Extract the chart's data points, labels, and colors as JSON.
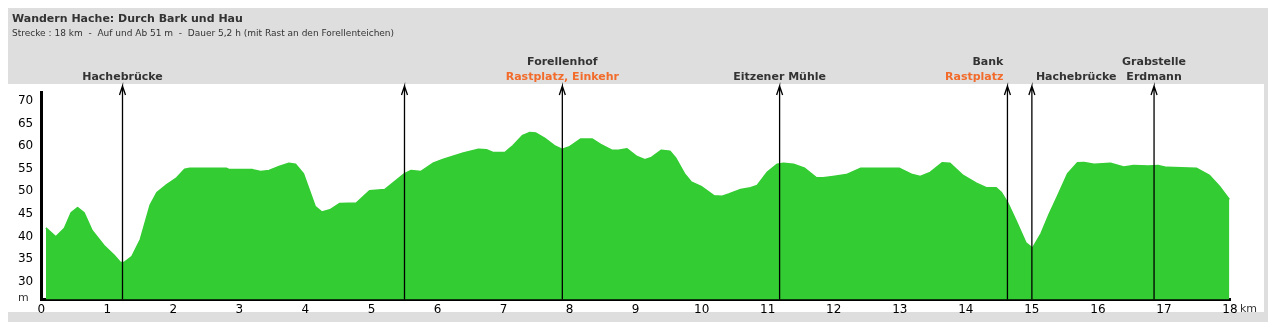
{
  "chart_data": {
    "type": "area",
    "title": "Wandern Hache: Durch Bark und Hau",
    "subtitle": "Strecke : 18 km  -  Auf und Ab 51 m  -  Dauer 5,2 h (mit Rast an den Forellenteichen)",
    "xlabel": "km",
    "ylabel": "m",
    "xlim": [
      0,
      18
    ],
    "xticks": [
      0,
      1,
      2,
      3,
      4,
      5,
      6,
      7,
      8,
      9,
      10,
      11,
      12,
      13,
      14,
      15,
      16,
      17,
      18
    ],
    "ylim": [
      26,
      72
    ],
    "yticks": [
      30,
      35,
      40,
      45,
      50,
      55,
      60,
      65,
      70
    ],
    "grid": false,
    "legend": false,
    "series": [
      {
        "color": "#33cc33",
        "x": [
          0.07,
          0.22,
          0.35,
          0.45,
          0.55,
          0.65,
          0.77,
          0.95,
          1.1,
          1.2,
          1.25,
          1.37,
          1.5,
          1.65,
          1.75,
          1.9,
          2.05,
          2.17,
          2.25,
          2.8,
          2.85,
          3.2,
          3.32,
          3.45,
          3.6,
          3.75,
          3.85,
          3.97,
          4.15,
          4.25,
          4.37,
          4.52,
          4.77,
          4.97,
          5.2,
          5.5,
          5.6,
          5.75,
          5.94,
          6.09,
          6.39,
          6.62,
          6.74,
          6.84,
          7.02,
          7.14,
          7.29,
          7.39,
          7.49,
          7.62,
          7.77,
          7.89,
          7.99,
          8.17,
          8.34,
          8.47,
          8.64,
          8.74,
          8.87,
          9.02,
          9.14,
          9.24,
          9.39,
          9.52,
          9.61,
          9.74,
          9.84,
          9.99,
          10.19,
          10.31,
          10.41,
          10.59,
          10.74,
          10.84,
          10.99,
          11.14,
          11.24,
          11.39,
          11.56,
          11.74,
          11.84,
          11.99,
          12.19,
          12.41,
          12.99,
          13.19,
          13.31,
          13.46,
          13.64,
          13.76,
          13.96,
          14.16,
          14.31,
          14.46,
          14.54,
          14.64,
          14.76,
          14.91,
          15.01,
          15.14,
          15.26,
          15.39,
          15.54,
          15.69,
          15.79,
          15.94,
          16.19,
          16.39,
          16.54,
          16.76,
          16.91,
          17.04,
          17.49,
          17.69,
          17.84,
          17.99
        ],
        "values": [
          41.9,
          39.9,
          41.8,
          45.2,
          46.4,
          45.2,
          41.3,
          38.0,
          35.9,
          34.2,
          34.2,
          35.5,
          39.3,
          47.0,
          49.7,
          51.5,
          53.0,
          54.9,
          55.1,
          55.1,
          54.8,
          54.8,
          54.4,
          54.6,
          55.5,
          56.2,
          56.0,
          53.9,
          46.6,
          45.4,
          45.9,
          47.3,
          47.4,
          50.1,
          50.4,
          53.9,
          54.6,
          54.4,
          56.3,
          57.1,
          58.5,
          59.3,
          59.2,
          58.6,
          58.6,
          60.1,
          62.4,
          63.0,
          62.9,
          61.8,
          60.1,
          59.3,
          59.8,
          61.6,
          61.6,
          60.4,
          59.1,
          59.1,
          59.4,
          57.7,
          57.0,
          57.5,
          59.1,
          58.9,
          57.3,
          53.9,
          52.1,
          51.1,
          49.0,
          48.9,
          49.4,
          50.4,
          50.8,
          51.3,
          54.2,
          56.0,
          56.2,
          56.0,
          55.1,
          53.0,
          53.0,
          53.3,
          53.7,
          55.1,
          55.1,
          53.7,
          53.3,
          54.2,
          56.3,
          56.2,
          53.5,
          51.8,
          50.8,
          50.8,
          49.7,
          47.3,
          43.5,
          38.6,
          37.4,
          40.7,
          44.9,
          49.0,
          53.9,
          56.3,
          56.4,
          56.0,
          56.2,
          55.4,
          55.7,
          55.6,
          55.7,
          55.3,
          55.1,
          53.5,
          51.1,
          48.2
        ]
      }
    ],
    "ref_lines": [
      {
        "axis": "x",
        "value": 1.23,
        "label": "Hachebrücke"
      },
      {
        "axis": "x",
        "value": 5.5
      },
      {
        "axis": "x",
        "value": 7.89,
        "label": "Forellenhof"
      },
      {
        "axis": "x",
        "value": 11.18,
        "label": "Eitzener Mühle"
      },
      {
        "axis": "x",
        "value": 14.63,
        "label": "Bank"
      },
      {
        "axis": "x",
        "value": 15.0,
        "label": "Hachebrücke"
      },
      {
        "axis": "x",
        "value": 16.85,
        "label": "Grabstelle\nErdmann"
      }
    ],
    "annotations": [
      {
        "text": "Rastplatz, Einkehr",
        "x": 7.89,
        "y": 72
      },
      {
        "text": "Rastplatz",
        "x": 14.63,
        "y": 72
      }
    ]
  }
}
